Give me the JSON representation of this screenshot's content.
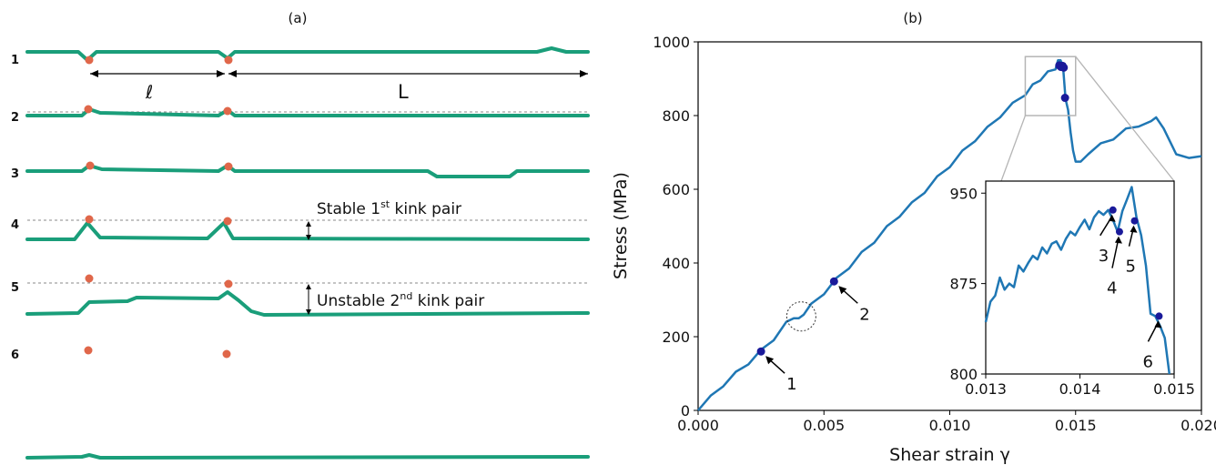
{
  "panel_a": {
    "label": "(a)",
    "row_labels": [
      "1",
      "2",
      "3",
      "4",
      "5",
      "6"
    ],
    "ell_label": "ℓ",
    "L_label": "L",
    "stable_text": "Stable 1",
    "stable_sup": "st",
    "stable_rest": " kink pair",
    "unstable_text": "Unstable 2",
    "unstable_sup": "nd",
    "unstable_rest": " kink pair",
    "colors": {
      "dislocation": "#1a9e7a",
      "atom": "#e0674a"
    }
  },
  "chart_data": [
    {
      "panel_label": "(b)",
      "type": "line",
      "xlabel": "Shear strain γ",
      "ylabel": "Stress (MPa)",
      "xlim": [
        0.0,
        0.02
      ],
      "ylim": [
        0,
        1000
      ],
      "xticks": [
        "0.000",
        "0.005",
        "0.010",
        "0.015",
        "0.020"
      ],
      "yticks": [
        "0",
        "200",
        "400",
        "600",
        "800",
        "1000"
      ],
      "color": "#1f77b4",
      "series": [
        {
          "x": [
            0.0,
            0.0005,
            0.001,
            0.0015,
            0.002,
            0.0025,
            0.003,
            0.0035,
            0.0038,
            0.004,
            0.0042,
            0.0045,
            0.005,
            0.0055,
            0.006,
            0.0065,
            0.007,
            0.0075,
            0.008,
            0.0085,
            0.009,
            0.0095,
            0.01,
            0.0105,
            0.011,
            0.0115,
            0.012,
            0.0125,
            0.013,
            0.0133,
            0.0136,
            0.0139,
            0.0142,
            0.0143,
            0.0144,
            0.0145,
            0.0146,
            0.0147,
            0.0148,
            0.0149,
            0.015,
            0.0152,
            0.0155,
            0.016,
            0.0165,
            0.017,
            0.0175,
            0.018,
            0.0182,
            0.0185,
            0.019,
            0.0195,
            0.02
          ],
          "y": [
            0,
            35,
            70,
            100,
            130,
            160,
            195,
            235,
            255,
            245,
            265,
            285,
            320,
            355,
            390,
            425,
            460,
            495,
            530,
            560,
            595,
            630,
            665,
            700,
            735,
            765,
            800,
            830,
            860,
            880,
            900,
            915,
            930,
            945,
            955,
            930,
            850,
            810,
            760,
            700,
            680,
            670,
            700,
            720,
            740,
            760,
            775,
            780,
            800,
            760,
            700,
            680,
            690
          ]
        }
      ],
      "markers": [
        {
          "label": "1",
          "x": 0.0025,
          "y": 160
        },
        {
          "label": "2",
          "x": 0.0054,
          "y": 350
        }
      ],
      "peak_markers": [
        {
          "x": 0.01435,
          "y": 936
        },
        {
          "x": 0.01442,
          "y": 932
        },
        {
          "x": 0.01448,
          "y": 935
        },
        {
          "x": 0.01453,
          "y": 930
        },
        {
          "x": 0.01458,
          "y": 848
        }
      ]
    },
    {
      "type": "line",
      "xlim": [
        0.013,
        0.015
      ],
      "ylim": [
        800,
        960
      ],
      "xticks": [
        "0.013",
        "0.014",
        "0.015"
      ],
      "yticks": [
        "800",
        "875",
        "950"
      ],
      "series": [
        {
          "x": [
            0.013,
            0.01305,
            0.0131,
            0.01315,
            0.0132,
            0.01325,
            0.0133,
            0.01335,
            0.0134,
            0.01345,
            0.0135,
            0.01355,
            0.0136,
            0.01365,
            0.0137,
            0.01375,
            0.0138,
            0.01385,
            0.0139,
            0.01395,
            0.014,
            0.01405,
            0.0141,
            0.01415,
            0.0142,
            0.01425,
            0.0143,
            0.01435,
            0.0144,
            0.01445,
            0.0145,
            0.01455,
            0.0146,
            0.01465,
            0.0147,
            0.01475,
            0.0148,
            0.01485,
            0.0149,
            0.01495
          ],
          "y": [
            843,
            860,
            865,
            880,
            870,
            875,
            872,
            890,
            885,
            892,
            898,
            895,
            905,
            900,
            908,
            910,
            903,
            912,
            918,
            915,
            922,
            928,
            920,
            930,
            935,
            932,
            936,
            928,
            918,
            935,
            945,
            955,
            930,
            915,
            890,
            850,
            848,
            840,
            830,
            800
          ]
        }
      ],
      "markers": [
        {
          "label": "3",
          "x": 0.01435,
          "y": 936
        },
        {
          "label": "4",
          "x": 0.01442,
          "y": 918
        },
        {
          "label": "5",
          "x": 0.01458,
          "y": 927
        },
        {
          "label": "6",
          "x": 0.01484,
          "y": 848
        }
      ]
    }
  ]
}
